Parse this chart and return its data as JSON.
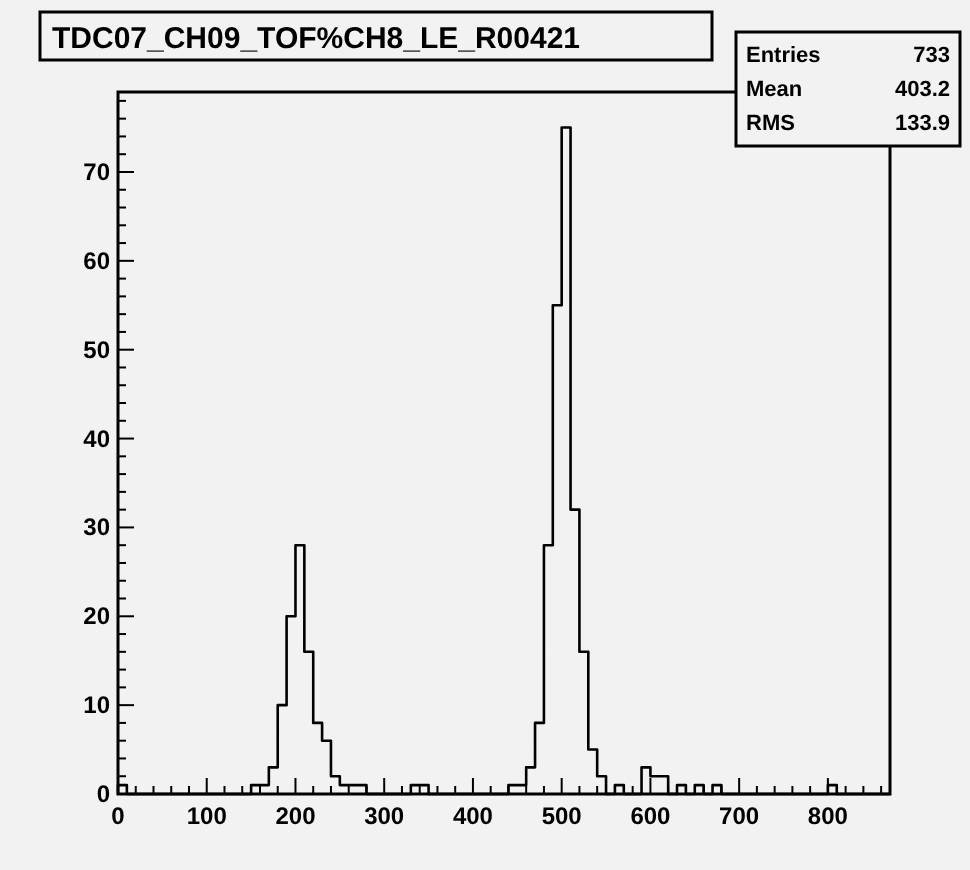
{
  "chart_data": {
    "type": "histogram",
    "title": "TDC07_CH09_TOF%CH8_LE_R00421",
    "bins": [
      0,
      10,
      20,
      30,
      40,
      50,
      60,
      70,
      80,
      90,
      100,
      110,
      120,
      130,
      140,
      150,
      160,
      170,
      180,
      190,
      200,
      210,
      220,
      230,
      240,
      250,
      260,
      270,
      280,
      290,
      300,
      310,
      320,
      330,
      340,
      350,
      360,
      370,
      380,
      390,
      400,
      410,
      420,
      430,
      440,
      450,
      460,
      470,
      480,
      490,
      500,
      510,
      520,
      530,
      540,
      550,
      560,
      570,
      580,
      590,
      600,
      610,
      620,
      630,
      640,
      650,
      660,
      670,
      680,
      690,
      700,
      710,
      720,
      730,
      740,
      750,
      760,
      770,
      780,
      790,
      800,
      810,
      820,
      830,
      840,
      850,
      860,
      870
    ],
    "values": [
      1,
      0,
      0,
      0,
      0,
      0,
      0,
      0,
      0,
      0,
      0,
      0,
      0,
      0,
      0,
      1,
      1,
      3,
      10,
      20,
      28,
      16,
      8,
      6,
      2,
      1,
      1,
      1,
      0,
      0,
      0,
      0,
      0,
      1,
      1,
      0,
      0,
      0,
      0,
      0,
      0,
      0,
      0,
      0,
      1,
      1,
      3,
      8,
      28,
      55,
      75,
      32,
      16,
      5,
      2,
      0,
      1,
      0,
      0,
      3,
      2,
      2,
      0,
      1,
      0,
      1,
      0,
      1,
      0,
      0,
      0,
      0,
      0,
      0,
      0,
      0,
      0,
      0,
      0,
      0,
      1,
      0,
      0,
      0,
      0,
      0,
      0
    ],
    "color": "#000000",
    "xlim": [
      0,
      870
    ],
    "ylim": [
      0,
      79
    ],
    "xticks": [
      0,
      {
        "value": 20,
        "label": null
      },
      {
        "value": 40,
        "label": null
      },
      {
        "value": 60,
        "label": null
      },
      {
        "value": 80,
        "label": null
      },
      100,
      {
        "value": 120,
        "label": null
      },
      {
        "value": 140,
        "label": null
      },
      {
        "value": 160,
        "label": null
      },
      {
        "value": 180,
        "label": null
      },
      200,
      {
        "value": 220,
        "label": null
      },
      {
        "value": 240,
        "label": null
      },
      {
        "value": 260,
        "label": null
      },
      {
        "value": 280,
        "label": null
      },
      300,
      {
        "value": 320,
        "label": null
      },
      {
        "value": 340,
        "label": null
      },
      {
        "value": 360,
        "label": null
      },
      {
        "value": 380,
        "label": null
      },
      400,
      {
        "value": 420,
        "label": null
      },
      {
        "value": 440,
        "label": null
      },
      {
        "value": 460,
        "label": null
      },
      {
        "value": 480,
        "label": null
      },
      500,
      {
        "value": 520,
        "label": null
      },
      {
        "value": 540,
        "label": null
      },
      {
        "value": 560,
        "label": null
      },
      {
        "value": 580,
        "label": null
      },
      600,
      {
        "value": 620,
        "label": null
      },
      {
        "value": 640,
        "label": null
      },
      {
        "value": 660,
        "label": null
      },
      {
        "value": 680,
        "label": null
      },
      700,
      {
        "value": 720,
        "label": null
      },
      {
        "value": 740,
        "label": null
      },
      {
        "value": 760,
        "label": null
      },
      {
        "value": 780,
        "label": null
      },
      800,
      {
        "value": 820,
        "label": null
      },
      {
        "value": 840,
        "label": null
      },
      {
        "value": 860,
        "label": null
      }
    ],
    "yticks": [
      0,
      {
        "value": 2,
        "label": null
      },
      {
        "value": 4,
        "label": null
      },
      {
        "value": 6,
        "label": null
      },
      {
        "value": 8,
        "label": null
      },
      10,
      {
        "value": 12,
        "label": null
      },
      {
        "value": 14,
        "label": null
      },
      {
        "value": 16,
        "label": null
      },
      {
        "value": 18,
        "label": null
      },
      20,
      {
        "value": 22,
        "label": null
      },
      {
        "value": 24,
        "label": null
      },
      {
        "value": 26,
        "label": null
      },
      {
        "value": 28,
        "label": null
      },
      30,
      {
        "value": 32,
        "label": null
      },
      {
        "value": 34,
        "label": null
      },
      {
        "value": 36,
        "label": null
      },
      {
        "value": 38,
        "label": null
      },
      40,
      {
        "value": 42,
        "label": null
      },
      {
        "value": 44,
        "label": null
      },
      {
        "value": 46,
        "label": null
      },
      {
        "value": 48,
        "label": null
      },
      50,
      {
        "value": 52,
        "label": null
      },
      {
        "value": 54,
        "label": null
      },
      {
        "value": 56,
        "label": null
      },
      {
        "value": 58,
        "label": null
      },
      60,
      {
        "value": 62,
        "label": null
      },
      {
        "value": 64,
        "label": null
      },
      {
        "value": 66,
        "label": null
      },
      {
        "value": 68,
        "label": null
      },
      70,
      {
        "value": 72,
        "label": null
      },
      {
        "value": 74,
        "label": null
      },
      {
        "value": 76,
        "label": null
      },
      {
        "value": 78,
        "label": null
      }
    ],
    "grid": false,
    "annotations": [
      "Entries 733",
      "Mean 403.2",
      "RMS 133.9"
    ]
  }
}
